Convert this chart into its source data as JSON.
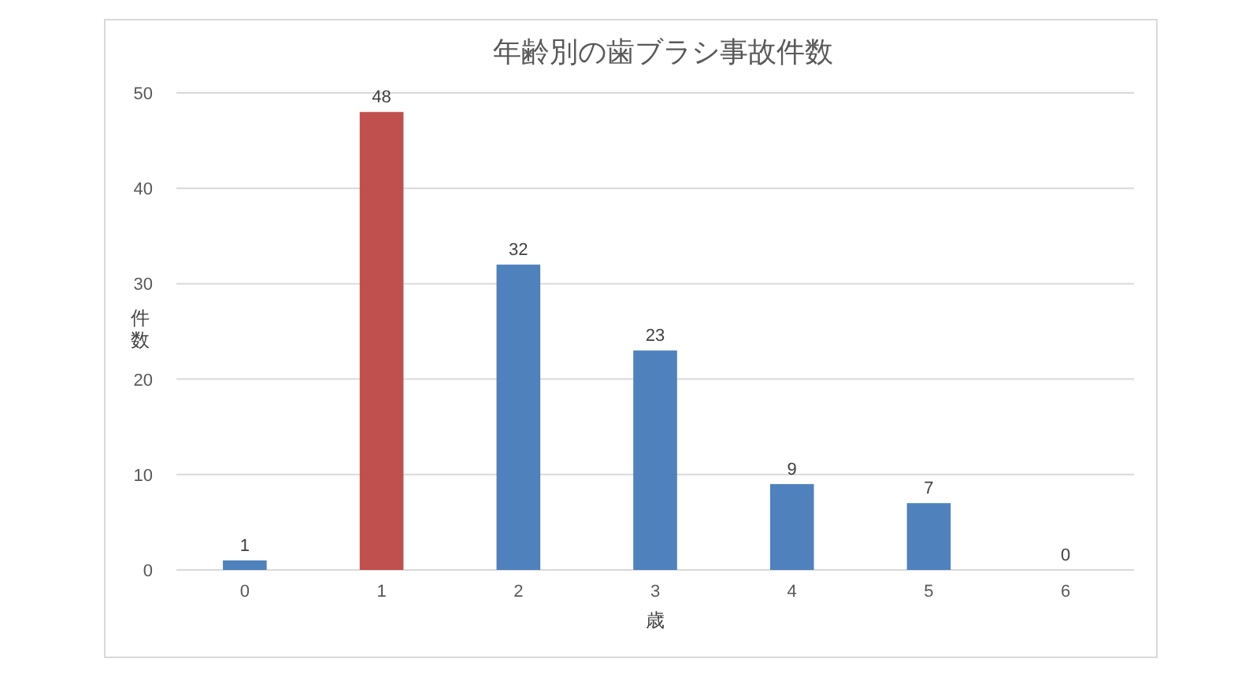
{
  "chart_data": {
    "type": "bar",
    "title": "年齢別の歯ブラシ事故件数",
    "xlabel": "歳",
    "ylabel": "件数",
    "categories": [
      "0",
      "1",
      "2",
      "3",
      "4",
      "5",
      "6"
    ],
    "values": [
      1,
      48,
      32,
      23,
      9,
      7,
      0
    ],
    "colors": [
      "#4f81bd",
      "#c0504d",
      "#4f81bd",
      "#4f81bd",
      "#4f81bd",
      "#4f81bd",
      "#4f81bd"
    ],
    "ylim": [
      0,
      50
    ],
    "yticks": [
      0,
      10,
      20,
      30,
      40,
      50
    ],
    "grid": "y",
    "data_labels": true
  }
}
